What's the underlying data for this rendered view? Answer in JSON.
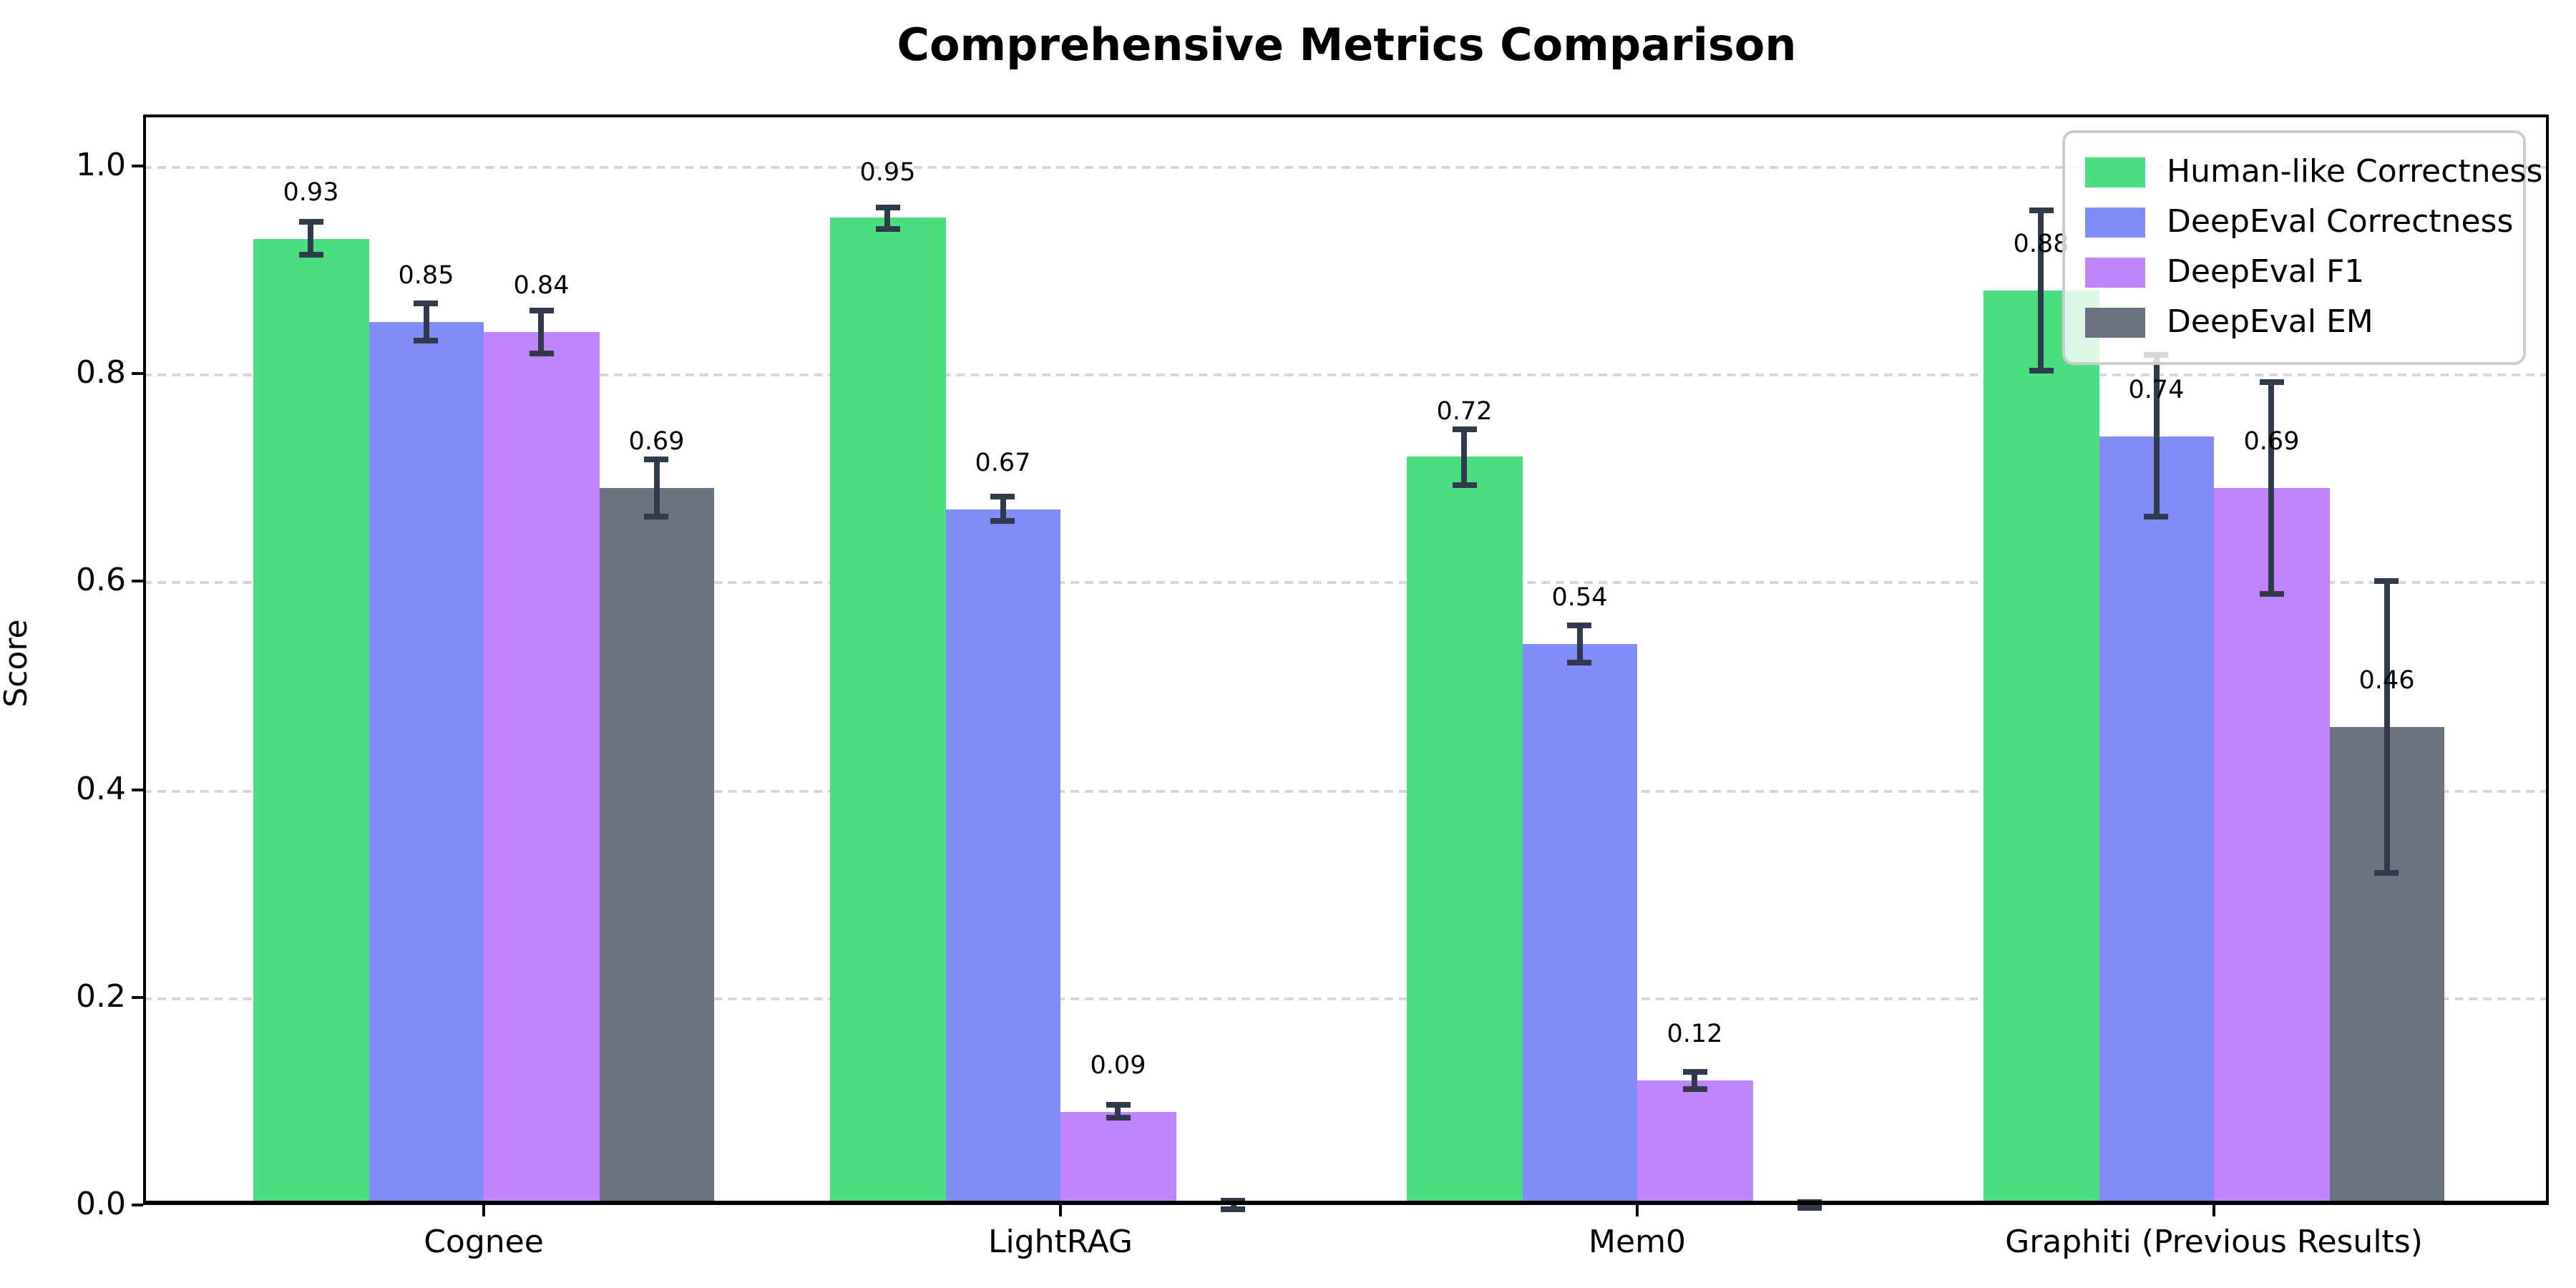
{
  "chart_data": {
    "type": "bar",
    "title": "Comprehensive Metrics Comparison",
    "ylabel": "Score",
    "xlabel": "",
    "categories": [
      "Cognee",
      "LightRAG",
      "Mem0",
      "Graphiti (Previous Results)"
    ],
    "series": [
      {
        "name": "Human-like Correctness",
        "color": "#4ade80",
        "values": [
          0.93,
          0.95,
          0.72,
          0.88
        ],
        "errors": [
          0.016,
          0.01,
          0.027,
          0.077
        ],
        "labels": [
          "0.93",
          "0.95",
          "0.72",
          "0.88"
        ]
      },
      {
        "name": "DeepEval Correctness",
        "color": "#818cf8",
        "values": [
          0.85,
          0.67,
          0.54,
          0.74
        ],
        "errors": [
          0.018,
          0.012,
          0.018,
          0.078
        ],
        "labels": [
          "0.85",
          "0.67",
          "0.54",
          "0.74"
        ]
      },
      {
        "name": "DeepEval F1",
        "color": "#c084fc",
        "values": [
          0.84,
          0.09,
          0.12,
          0.69
        ],
        "errors": [
          0.021,
          0.006,
          0.008,
          0.102
        ],
        "labels": [
          "0.84",
          "0.09",
          "0.12",
          "0.69"
        ]
      },
      {
        "name": "DeepEval EM",
        "color": "#6b7280",
        "values": [
          0.69,
          0.0,
          0.0,
          0.46
        ],
        "errors": [
          0.027,
          0.004,
          0.003,
          0.14
        ],
        "labels": [
          "0.69",
          "",
          "",
          "0.46"
        ]
      }
    ],
    "yticks": [
      "0.0",
      "0.2",
      "0.4",
      "0.6",
      "0.8",
      "1.0"
    ],
    "ytick_values": [
      0.0,
      0.2,
      0.4,
      0.6,
      0.8,
      1.0
    ],
    "ylim": [
      0.0,
      1.05
    ],
    "grid": "horizontal-dashed",
    "legend_position": "upper-right",
    "error_bar_color": "#2f3b4c",
    "value_label_offset": 0.03
  }
}
